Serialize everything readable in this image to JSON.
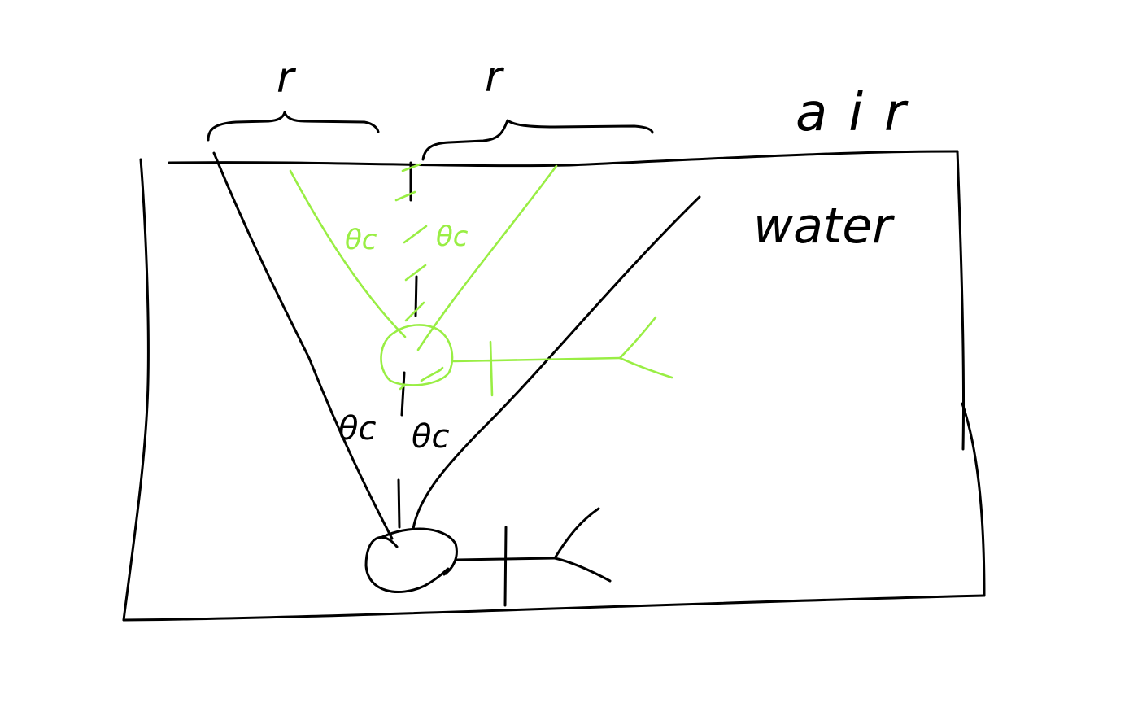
{
  "labels": {
    "medium_top": "air",
    "medium_bottom": "water",
    "radius_left": "r",
    "radius_right": "r",
    "critical_angle_green_left": "θc",
    "critical_angle_green_right": "θc",
    "critical_angle_black_left": "θc",
    "critical_angle_black_right": "θc"
  },
  "colors": {
    "ink": "#000000",
    "highlight": "#99ee44",
    "background": "#ffffff"
  },
  "icons": {
    "fish_deep": "fish-icon",
    "fish_shallow": "fish-icon"
  }
}
